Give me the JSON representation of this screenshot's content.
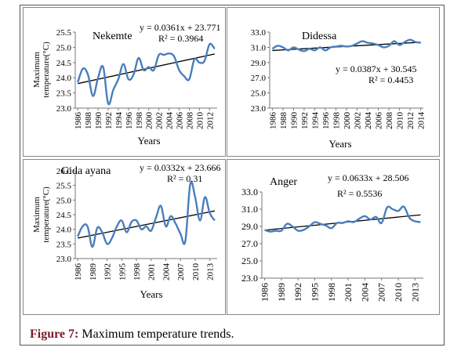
{
  "figure": {
    "caption_label": "Figure 7:",
    "caption_text": " Maximum temperature trends."
  },
  "chart_data": [
    {
      "type": "line",
      "panel": "Nekemte",
      "ylabel": "Maximum temperature(°C)",
      "ylabel_lines": [
        "Maximum",
        "temperature(°C)"
      ],
      "xlabel": "Years",
      "ylim": [
        23.0,
        25.5
      ],
      "yticks": [
        "25.5",
        "25.0",
        "24.5",
        "24.0",
        "23.5",
        "23.0"
      ],
      "xticks": [
        "1986",
        "1988",
        "1990",
        "1992",
        "1994",
        "1996",
        "1998",
        "2000",
        "2002",
        "2004",
        "2006",
        "2008",
        "2010",
        "2012"
      ],
      "x": [
        1986,
        1987,
        1988,
        1989,
        1990,
        1991,
        1992,
        1993,
        1994,
        1995,
        1996,
        1997,
        1998,
        1999,
        2000,
        2001,
        2002,
        2003,
        2004,
        2005,
        2006,
        2007,
        2008,
        2009,
        2010,
        2011,
        2012,
        2013
      ],
      "series": [
        {
          "values": [
            23.85,
            24.3,
            24.1,
            23.4,
            24.0,
            24.35,
            23.15,
            23.6,
            23.95,
            24.45,
            23.95,
            24.1,
            24.65,
            24.25,
            24.35,
            24.25,
            24.75,
            24.75,
            24.8,
            24.7,
            24.25,
            24.05,
            23.95,
            24.6,
            24.5,
            24.55,
            25.1,
            24.95
          ]
        }
      ],
      "trendline": {
        "equation": "y = 0.0361x + 23.771",
        "r2": "R² = 0.3964",
        "slope": 0.0361,
        "intercept": 23.771
      }
    },
    {
      "type": "line",
      "panel": "Didessa",
      "ylabel": "",
      "xlabel": "Years",
      "ylim": [
        23.0,
        33.0
      ],
      "yticks": [
        "33.0",
        "31.0",
        "29.0",
        "27.0",
        "25.0",
        "23.0"
      ],
      "xticks": [
        "1986",
        "1988",
        "1990",
        "1992",
        "1994",
        "1996",
        "1998",
        "2000",
        "2002",
        "2004",
        "2006",
        "2008",
        "2010",
        "2012",
        "2014"
      ],
      "x": [
        1986,
        1987,
        1988,
        1989,
        1990,
        1991,
        1992,
        1993,
        1994,
        1995,
        1996,
        1997,
        1998,
        1999,
        2000,
        2001,
        2002,
        2003,
        2004,
        2005,
        2006,
        2007,
        2008,
        2009,
        2010,
        2011,
        2012,
        2013,
        2014
      ],
      "series": [
        {
          "values": [
            30.8,
            31.2,
            31.0,
            30.6,
            31.0,
            30.7,
            30.5,
            30.8,
            30.6,
            31.0,
            30.6,
            31.0,
            31.1,
            31.2,
            31.1,
            31.2,
            31.5,
            31.8,
            31.6,
            31.5,
            31.3,
            31.0,
            31.2,
            31.8,
            31.3,
            31.7,
            32.0,
            31.7,
            31.6
          ]
        }
      ],
      "trendline": {
        "equation": "y = 0.0387x + 30.545",
        "r2": "R² = 0.4453",
        "slope": 0.0387,
        "intercept": 30.545
      }
    },
    {
      "type": "line",
      "panel": "Gida ayana",
      "ylabel": "Maximum temperature(°C)",
      "ylabel_lines": [
        "Maximum",
        "temperature(°C)"
      ],
      "xlabel": "Years",
      "ylim": [
        23.0,
        26.0
      ],
      "yticks": [
        "26.0",
        "25.5",
        "25.0",
        "24.5",
        "24.0",
        "23.5",
        "23.0"
      ],
      "xticks": [
        "1986",
        "1989",
        "1992",
        "1995",
        "1998",
        "2001",
        "2004",
        "2007",
        "2010",
        "2013"
      ],
      "x": [
        1986,
        1987,
        1988,
        1989,
        1990,
        1991,
        1992,
        1993,
        1994,
        1995,
        1996,
        1997,
        1998,
        1999,
        2000,
        2001,
        2002,
        2003,
        2004,
        2005,
        2006,
        2007,
        2008,
        2009,
        2010,
        2011,
        2012,
        2013,
        2014
      ],
      "series": [
        {
          "values": [
            23.75,
            24.1,
            24.1,
            23.4,
            24.05,
            23.9,
            23.5,
            23.7,
            24.1,
            24.3,
            23.9,
            24.25,
            24.3,
            24.0,
            24.1,
            23.95,
            24.4,
            24.8,
            24.1,
            24.45,
            24.2,
            23.85,
            23.6,
            25.55,
            25.1,
            24.3,
            25.1,
            24.55,
            24.3
          ]
        }
      ],
      "trendline": {
        "equation": "y = 0.0332x + 23.666",
        "r2": "R² = 0.31",
        "slope": 0.0332,
        "intercept": 23.666
      }
    },
    {
      "type": "line",
      "panel": "Anger",
      "ylabel": "",
      "xlabel": "",
      "ylim": [
        23.0,
        33.0
      ],
      "yticks": [
        "33.0",
        "31.0",
        "29.0",
        "27.0",
        "25.0",
        "23.0"
      ],
      "xticks": [
        "1986",
        "1989",
        "1992",
        "1995",
        "1998",
        "2001",
        "2004",
        "2007",
        "2010",
        "2013"
      ],
      "x": [
        1986,
        1987,
        1988,
        1989,
        1990,
        1991,
        1992,
        1993,
        1994,
        1995,
        1996,
        1997,
        1998,
        1999,
        2000,
        2001,
        2002,
        2003,
        2004,
        2005,
        2006,
        2007,
        2008,
        2009,
        2010,
        2011,
        2012,
        2013,
        2014
      ],
      "series": [
        {
          "values": [
            28.6,
            28.4,
            28.5,
            28.5,
            29.3,
            29.0,
            28.5,
            28.6,
            29.0,
            29.5,
            29.3,
            29.1,
            28.8,
            29.4,
            29.4,
            29.6,
            29.5,
            29.9,
            30.2,
            29.8,
            30.1,
            29.4,
            31.2,
            31.0,
            30.8,
            31.3,
            30.0,
            29.6,
            29.5
          ]
        }
      ],
      "trendline": {
        "equation": "y = 0.0633x + 28.506",
        "r2": "R² = 0.5536",
        "slope": 0.0633,
        "intercept": 28.506
      }
    }
  ]
}
